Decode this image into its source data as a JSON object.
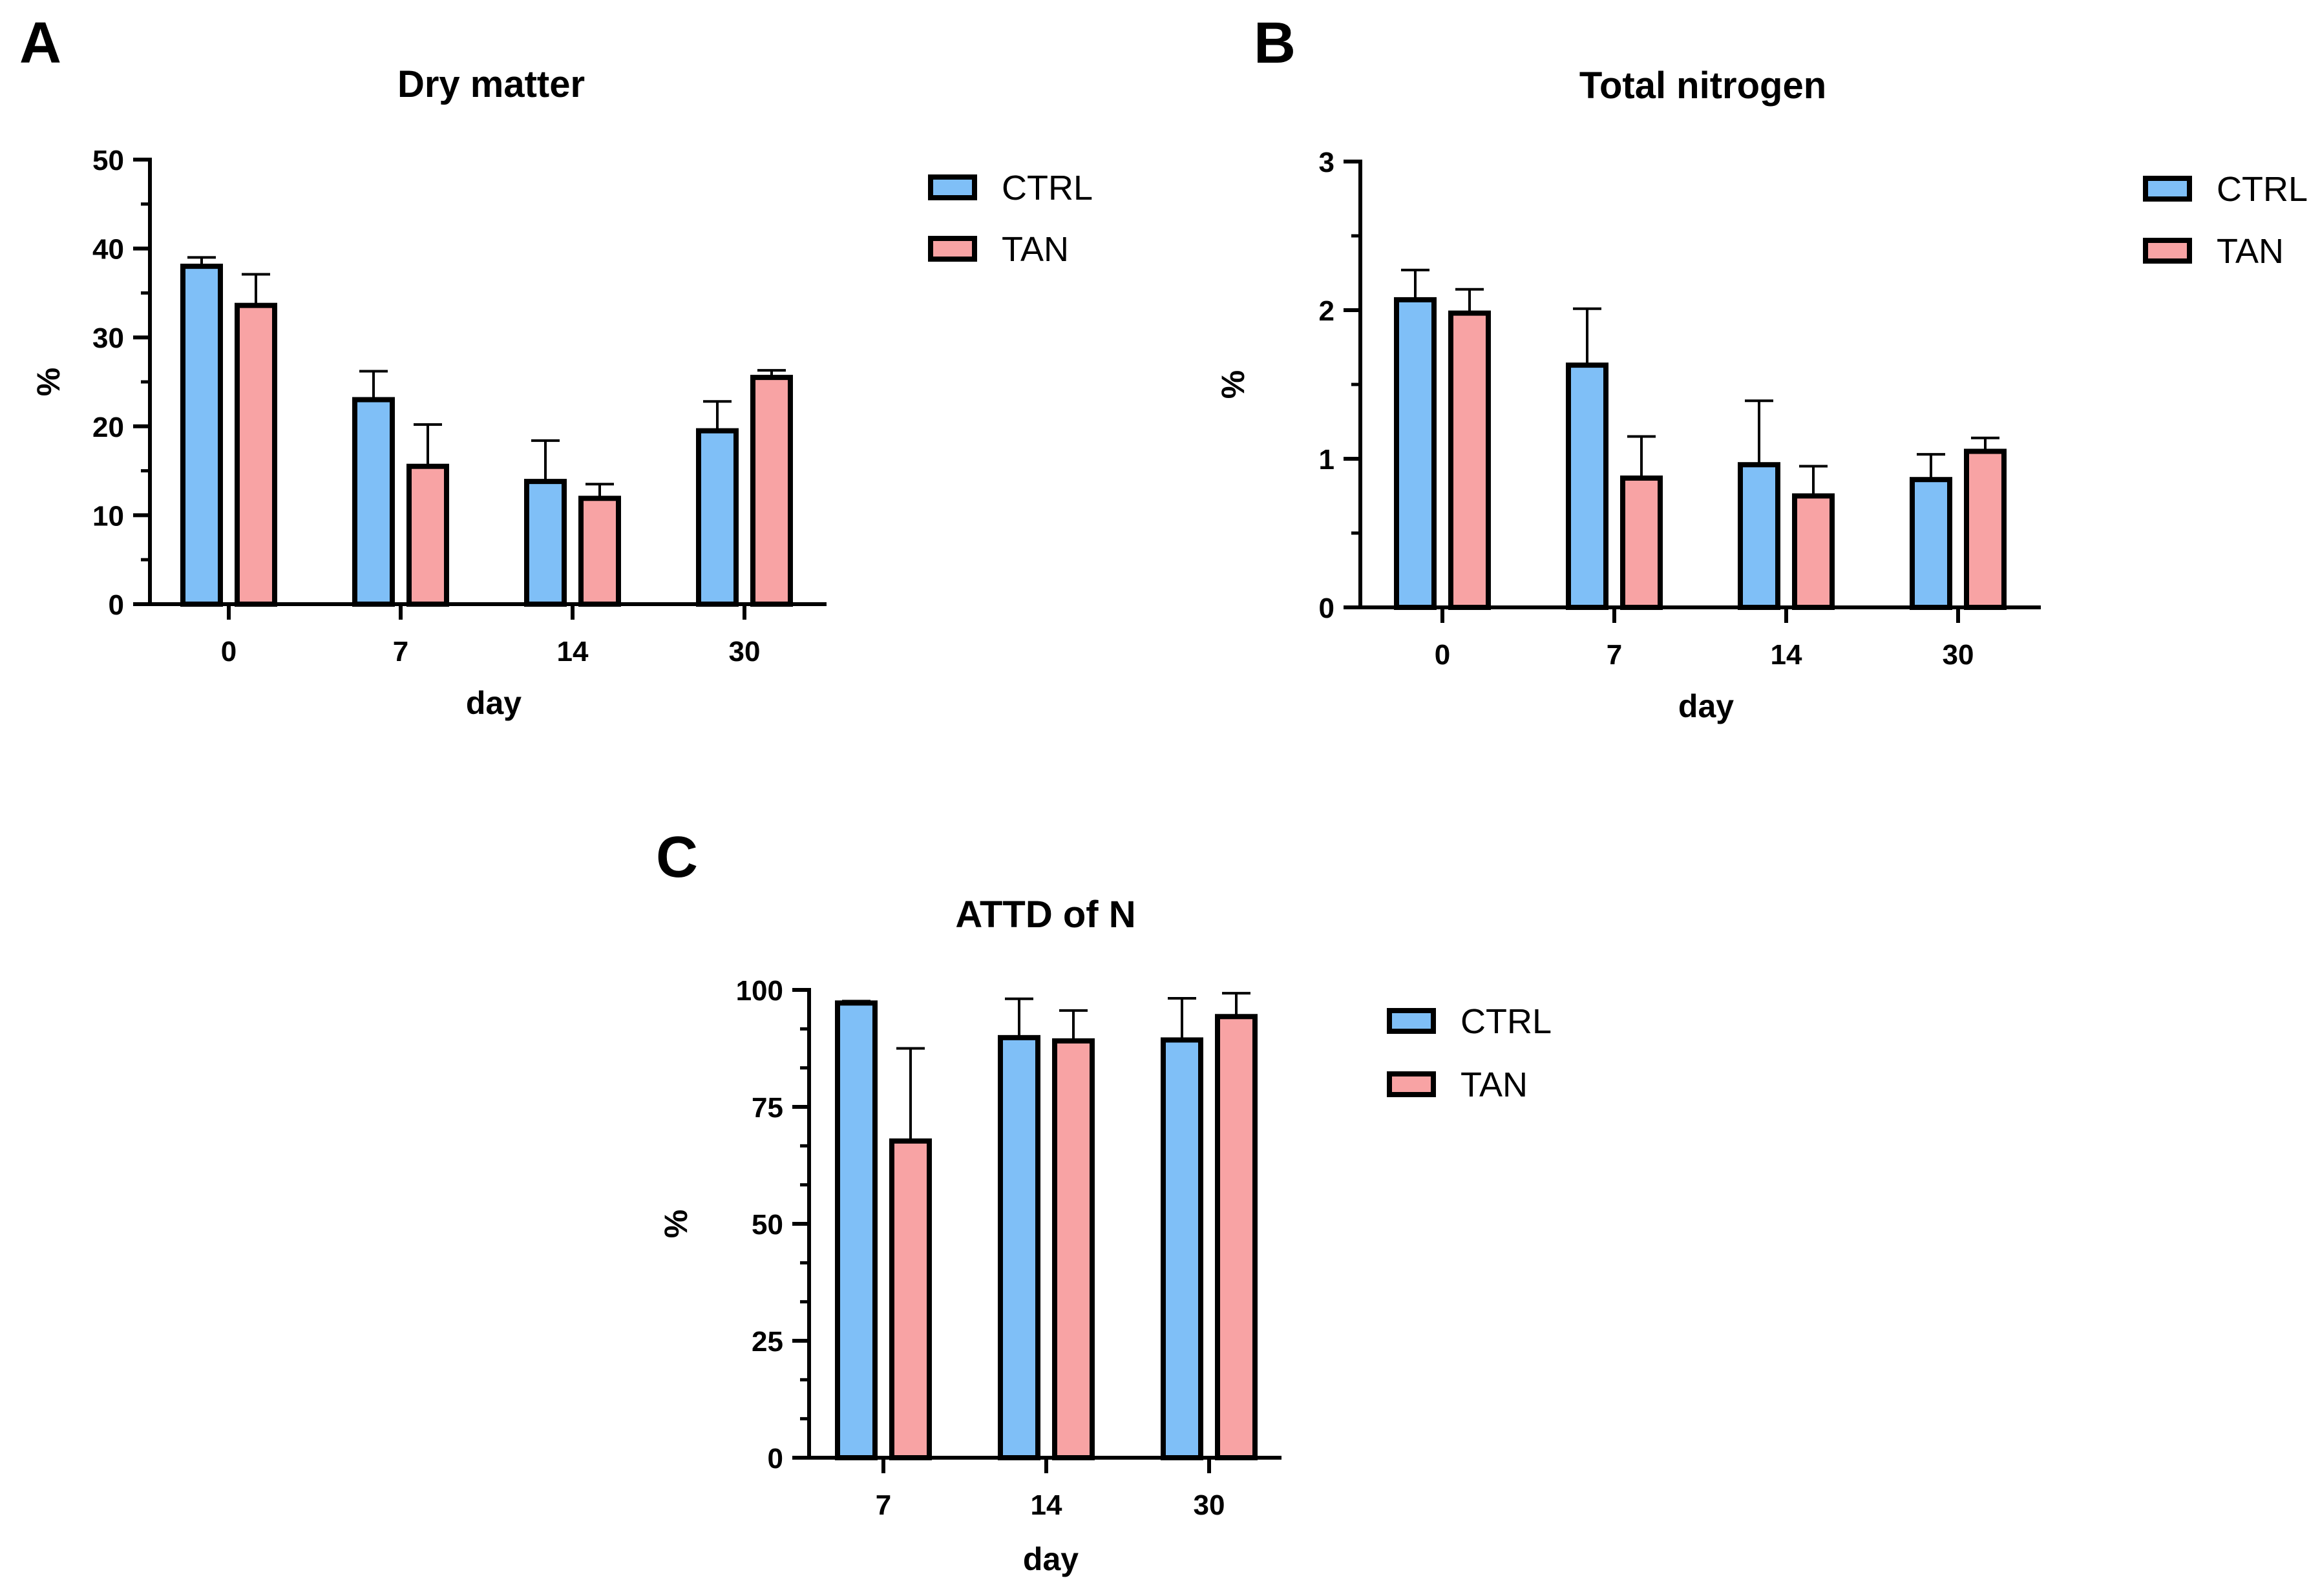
{
  "figure": {
    "panels": [
      "A",
      "B",
      "C"
    ]
  },
  "colors": {
    "ctrl": "#7fbff7",
    "tan": "#f8a3a4",
    "stroke": "#000000"
  },
  "chart_data": [
    {
      "id": "A",
      "type": "bar",
      "title": "Dry matter",
      "xlabel": "day",
      "ylabel": "%",
      "categories": [
        "0",
        "7",
        "14",
        "30"
      ],
      "ylim": [
        0,
        50
      ],
      "yticks": [
        "0",
        "10",
        "20",
        "30",
        "40",
        "50"
      ],
      "legend": "right",
      "series": [
        {
          "name": "CTRL",
          "values": [
            38,
            23,
            13.8,
            19.5
          ],
          "errors": [
            1,
            3.2,
            4.6,
            3.3
          ]
        },
        {
          "name": "TAN",
          "values": [
            33.6,
            15.5,
            11.9,
            25.5
          ],
          "errors": [
            3.5,
            4.7,
            1.6,
            0.8
          ]
        }
      ]
    },
    {
      "id": "B",
      "type": "bar",
      "title": "Total nitrogen",
      "xlabel": "day",
      "ylabel": "%",
      "categories": [
        "0",
        "7",
        "14",
        "30"
      ],
      "ylim": [
        0,
        3
      ],
      "yticks": [
        "0",
        "1",
        "2",
        "3"
      ],
      "legend": "right",
      "series": [
        {
          "name": "CTRL",
          "values": [
            2.07,
            1.63,
            0.96,
            0.86
          ],
          "errors": [
            0.2,
            0.38,
            0.43,
            0.17
          ]
        },
        {
          "name": "TAN",
          "values": [
            1.98,
            0.87,
            0.75,
            1.05
          ],
          "errors": [
            0.16,
            0.28,
            0.2,
            0.09
          ]
        }
      ]
    },
    {
      "id": "C",
      "type": "bar",
      "title": "ATTD of N",
      "xlabel": "day",
      "ylabel": "%",
      "categories": [
        "7",
        "14",
        "30"
      ],
      "ylim": [
        0,
        100
      ],
      "yticks": [
        "0",
        "25",
        "50",
        "75",
        "100"
      ],
      "legend": "right",
      "series": [
        {
          "name": "CTRL",
          "values": [
            97.2,
            89.8,
            89.3
          ],
          "errors": [
            0.4,
            8.3,
            8.9
          ]
        },
        {
          "name": "TAN",
          "values": [
            67.7,
            89.1,
            94.3
          ],
          "errors": [
            19.8,
            6.5,
            5
          ]
        }
      ]
    }
  ]
}
